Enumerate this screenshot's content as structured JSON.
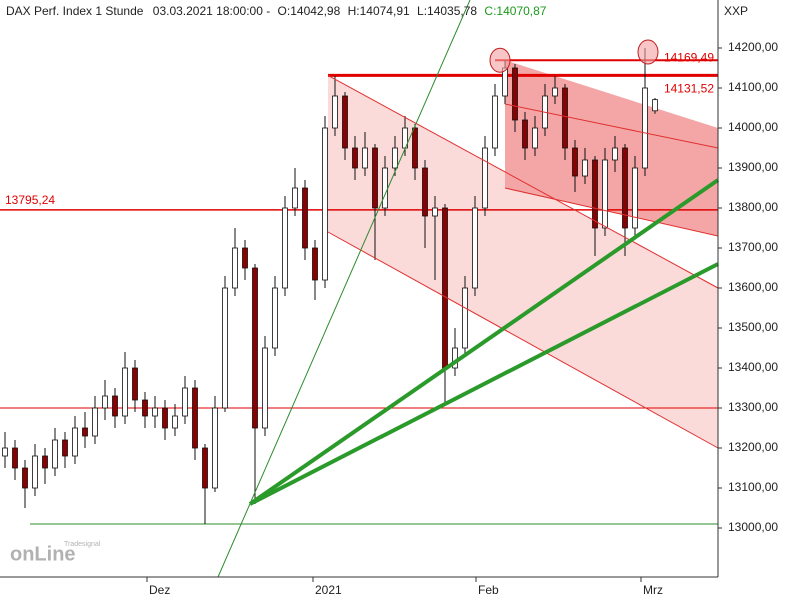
{
  "chart_data": {
    "type": "candlestick",
    "title": "DAX Perf. Index 1 Stunde",
    "subtitle": "03.03.2021 18:00:00 -",
    "last_labels": {
      "open": "O:14042,98",
      "high": "H:14074,91",
      "low": "L:14035,78",
      "close": "C:14070,87"
    },
    "axis_label": "XXP",
    "watermark": {
      "small": "Tradesignal",
      "big": "onLine"
    },
    "up_color": "#ffffff",
    "down_color": "#8b0000",
    "xlim": [
      -0.5,
      71.3
    ],
    "ylim": [
      12877.5,
      14320
    ],
    "xticks": [
      {
        "value": 14.2,
        "label": "Dez"
      },
      {
        "value": 30.8,
        "label": "2021"
      },
      {
        "value": 47.1,
        "label": "Feb"
      },
      {
        "value": 63.6,
        "label": "Mrz"
      }
    ],
    "yticks": [
      {
        "value": 13000,
        "label": "13000,00"
      },
      {
        "value": 13100,
        "label": "13100,00"
      },
      {
        "value": 13200,
        "label": "13200,00"
      },
      {
        "value": 13300,
        "label": "13300,00"
      },
      {
        "value": 13400,
        "label": "13400,00"
      },
      {
        "value": 13500,
        "label": "13500,00"
      },
      {
        "value": 13600,
        "label": "13600,00"
      },
      {
        "value": 13700,
        "label": "13700,00"
      },
      {
        "value": 13800,
        "label": "13800,00"
      },
      {
        "value": 13900,
        "label": "13900,00"
      },
      {
        "value": 14000,
        "label": "14000,00"
      },
      {
        "value": 14100,
        "label": "14100,00"
      },
      {
        "value": 14200,
        "label": "14200,00"
      }
    ],
    "open": [
      13180,
      13200,
      13150,
      13100,
      13180,
      13150,
      13220,
      13180,
      13250,
      13230,
      13300,
      13330,
      13280,
      13400,
      13320,
      13280,
      13300,
      13250,
      13280,
      13350,
      13200,
      13100,
      13300,
      13600,
      13700,
      13650,
      13250,
      13450,
      13600,
      13800,
      13850,
      13700,
      13620,
      14000,
      14080,
      13950,
      13900,
      13950,
      13800,
      13900,
      13950,
      14000,
      13900,
      13780,
      13800,
      13400,
      13450,
      13600,
      13800,
      13950,
      14080,
      14150,
      14020,
      13950,
      14000,
      14080,
      14100,
      13950,
      13880,
      13920,
      13750,
      13920,
      13950,
      13750,
      13900,
      14042.98
    ],
    "high": [
      13240,
      13220,
      13170,
      13210,
      13200,
      13250,
      13240,
      13280,
      13290,
      13330,
      13370,
      13350,
      13440,
      13420,
      13340,
      13330,
      13320,
      13310,
      13380,
      13370,
      13210,
      13330,
      13630,
      13750,
      13720,
      13660,
      13480,
      13630,
      13830,
      13900,
      13870,
      13720,
      14030,
      14130,
      14090,
      13980,
      13990,
      13960,
      13930,
      13980,
      14030,
      14010,
      13920,
      13830,
      13810,
      13500,
      13630,
      13830,
      13980,
      14110,
      14169.49,
      14160,
      14040,
      14030,
      14110,
      14130,
      14110,
      13970,
      13950,
      13930,
      13950,
      13980,
      13960,
      13930,
      14200,
      14074.91
    ],
    "low": [
      13150,
      13120,
      13050,
      13080,
      13110,
      13130,
      13150,
      13160,
      13200,
      13210,
      13270,
      13250,
      13260,
      13290,
      13250,
      13250,
      13220,
      13230,
      13260,
      13170,
      13010,
      13090,
      13290,
      13580,
      13620,
      13060,
      13230,
      13430,
      13580,
      13780,
      13670,
      13570,
      13600,
      13980,
      13920,
      13870,
      13880,
      13670,
      13780,
      13880,
      13930,
      13870,
      13700,
      13620,
      13310,
      13380,
      13430,
      13580,
      13780,
      13930,
      14060,
      13990,
      13920,
      13930,
      13980,
      14060,
      13920,
      13840,
      13860,
      13680,
      13730,
      13890,
      13680,
      13730,
      13880,
      14035.78
    ],
    "close": [
      13200,
      13150,
      13100,
      13180,
      13150,
      13220,
      13180,
      13250,
      13230,
      13300,
      13330,
      13280,
      13400,
      13320,
      13280,
      13300,
      13250,
      13280,
      13350,
      13200,
      13100,
      13300,
      13600,
      13700,
      13650,
      13250,
      13450,
      13600,
      13800,
      13850,
      13700,
      13620,
      14000,
      14080,
      13950,
      13900,
      13950,
      13800,
      13900,
      13950,
      14000,
      13900,
      13780,
      13800,
      13400,
      13450,
      13600,
      13800,
      13950,
      14080,
      14150,
      14020,
      13950,
      14000,
      14080,
      14100,
      13950,
      13880,
      13920,
      13750,
      13920,
      13950,
      13750,
      13900,
      14100,
      14070.87
    ],
    "levels": [
      {
        "value": 14169.49,
        "label": "14169,49",
        "color": "#e00000",
        "width": 2,
        "from": 49
      },
      {
        "value": 14131.52,
        "label": "14131,52",
        "color": "#e00000",
        "width": 3,
        "from": 32.3
      },
      {
        "value": 13795.24,
        "label": "13795,24",
        "color": "#e00000",
        "width": 1.5,
        "from": -0.5
      },
      {
        "value": 13300,
        "color": "#e00000",
        "width": 1,
        "from": -0.5
      },
      {
        "value": 13010,
        "color": "#2e8b2e",
        "width": 1,
        "from": 2.5
      }
    ],
    "bands": [
      {
        "color": "#fbdada",
        "x": [
          32.3,
          71.3,
          71.3,
          32.3
        ],
        "y": [
          14131.52,
          13600,
          13200,
          13740
        ]
      },
      {
        "color": "#f4a6a6",
        "x": [
          50,
          71.3,
          71.3,
          50
        ],
        "y": [
          14169.49,
          14000,
          13730,
          13850
        ]
      }
    ],
    "trendlines": [
      {
        "color": "#e03030",
        "width": 1,
        "x": [
          32.3,
          71.3
        ],
        "y": [
          14131.52,
          13600
        ]
      },
      {
        "color": "#e03030",
        "width": 1,
        "x": [
          32.3,
          71.3
        ],
        "y": [
          13740,
          13200
        ]
      },
      {
        "color": "#e03030",
        "width": 1,
        "x": [
          50,
          71.3
        ],
        "y": [
          14060,
          13950
        ]
      },
      {
        "color": "#e03030",
        "width": 1,
        "x": [
          50,
          71.3
        ],
        "y": [
          13850,
          13730
        ]
      },
      {
        "color": "#2e8b2e",
        "width": 1,
        "x": [
          21.3,
          46.5
        ],
        "y": [
          12877.5,
          14320
        ]
      },
      {
        "color": "#2a9a2a",
        "width": 4,
        "x": [
          24.5,
          71.3
        ],
        "y": [
          13060,
          13870
        ]
      },
      {
        "color": "#2a9a2a",
        "width": 4,
        "x": [
          24.5,
          71.3
        ],
        "y": [
          13060,
          13660
        ]
      }
    ],
    "highlights": [
      {
        "x": 49.5,
        "y": 14169.49
      },
      {
        "x": 64.3,
        "y": 14190
      }
    ]
  }
}
